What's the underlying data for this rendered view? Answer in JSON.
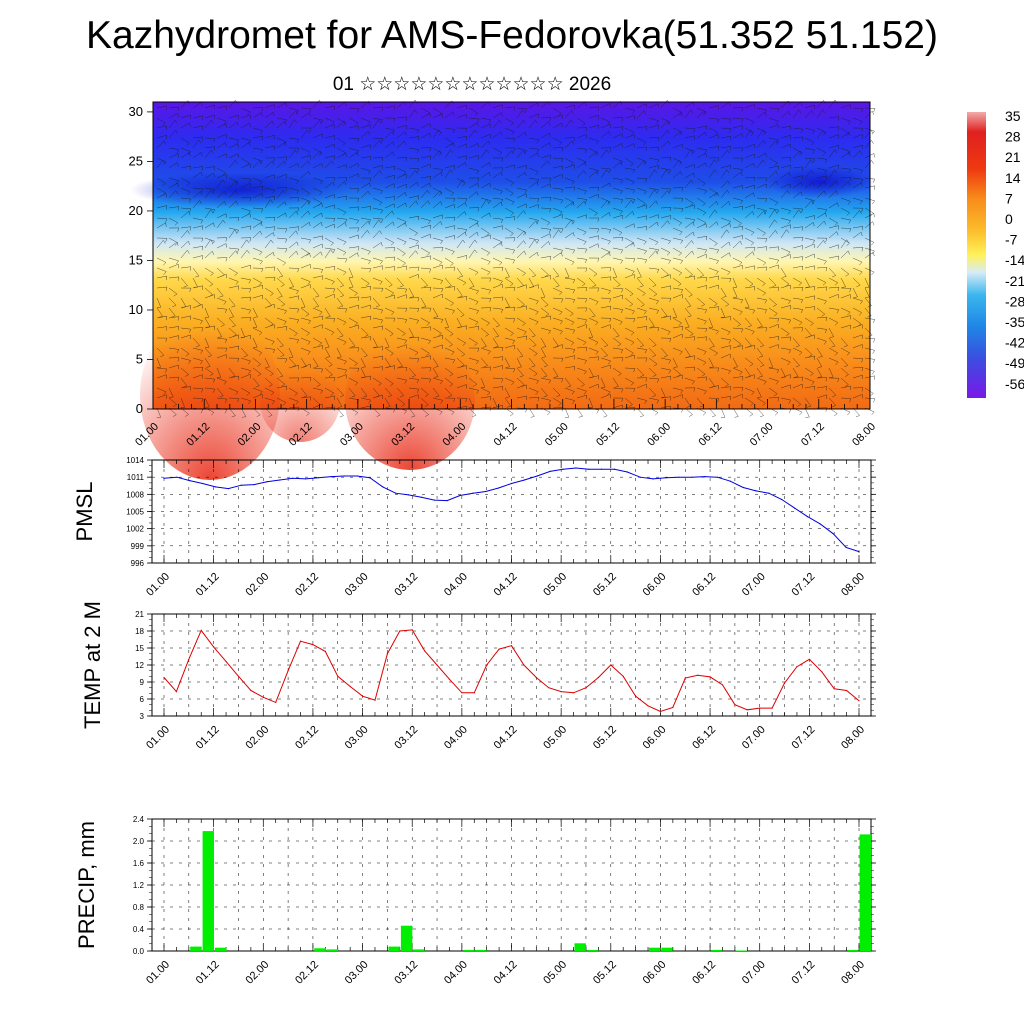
{
  "title": "Kazhydromet for AMS-Fedorovka(51.352 51.152)",
  "subtitle": "01 ☆☆☆☆☆☆☆☆☆☆☆☆ 2026",
  "time_labels": [
    "01.00",
    "01.12",
    "02.00",
    "02.12",
    "03.00",
    "03.12",
    "04.00",
    "04.12",
    "05.00",
    "05.12",
    "06.00",
    "06.12",
    "07.00",
    "07.12",
    "08.00"
  ],
  "colors": {
    "pmsl": "#0000dd",
    "temp": "#dd0000",
    "precip": "#00ee00"
  },
  "chart_data": [
    {
      "type": "heatmap",
      "name": "cross-section",
      "title": "",
      "ylim": [
        0,
        31
      ],
      "yticks": [
        "0",
        "5",
        "10",
        "15",
        "20",
        "25",
        "30"
      ],
      "colorbar_labels": [
        "35",
        "28",
        "21",
        "14",
        "7",
        "0",
        "-7",
        "-14",
        "-21",
        "-28",
        "-35",
        "-42",
        "-49",
        "-56"
      ]
    },
    {
      "type": "line",
      "name": "pmsl",
      "ylabel": "PMSL",
      "ylim": [
        996,
        1014
      ],
      "yticks": [
        "996",
        "999",
        "1002",
        "1005",
        "1008",
        "1011",
        "1014"
      ],
      "values": [
        1010.8,
        1011.0,
        1010.4,
        1009.9,
        1009.3,
        1009.0,
        1009.6,
        1009.7,
        1010.2,
        1010.5,
        1010.8,
        1010.7,
        1010.9,
        1011.1,
        1011.2,
        1011.2,
        1010.9,
        1009.3,
        1008.2,
        1007.9,
        1007.5,
        1007.0,
        1006.9,
        1007.8,
        1008.2,
        1008.5,
        1009.1,
        1009.9,
        1010.5,
        1011.2,
        1012.0,
        1012.4,
        1012.6,
        1012.4,
        1012.4,
        1012.4,
        1011.9,
        1011.0,
        1010.7,
        1010.9,
        1011.0,
        1011.0,
        1011.1,
        1011.0,
        1010.3,
        1009.2,
        1008.6,
        1008.2,
        1007.1,
        1005.6,
        1004.1,
        1002.8,
        1001.1,
        998.7,
        998.0
      ]
    },
    {
      "type": "line",
      "name": "temp",
      "ylabel": "TEMP at 2 M",
      "ylim": [
        3,
        21
      ],
      "yticks": [
        "3",
        "6",
        "9",
        "12",
        "15",
        "18",
        "21"
      ],
      "values": [
        9.8,
        7.3,
        13.0,
        18.1,
        15.2,
        12.6,
        10.0,
        7.5,
        6.3,
        5.4,
        11.0,
        16.2,
        15.6,
        14.4,
        10.0,
        8.2,
        6.5,
        5.8,
        14.0,
        18.0,
        18.2,
        14.5,
        12.0,
        9.5,
        7.1,
        7.1,
        12.0,
        14.8,
        15.4,
        12.0,
        9.8,
        8.0,
        7.3,
        7.1,
        8.0,
        9.8,
        12.0,
        10.0,
        6.5,
        4.8,
        3.8,
        4.5,
        9.7,
        10.2,
        9.9,
        8.5,
        5.0,
        4.1,
        4.4,
        4.4,
        8.8,
        11.7,
        13.0,
        10.8,
        7.8,
        7.5,
        5.7
      ]
    },
    {
      "type": "bar",
      "name": "precip",
      "ylabel": "PRECIP, mm",
      "ylim": [
        0,
        2.4
      ],
      "yticks": [
        "0.0",
        "0.4",
        "0.8",
        "1.2",
        "1.6",
        "2.0",
        "2.4"
      ],
      "values": [
        0,
        0,
        0,
        0.08,
        2.18,
        0.06,
        0,
        0,
        0,
        0,
        0,
        0,
        0,
        0.05,
        0.03,
        0,
        0,
        0,
        0,
        0.08,
        0.46,
        0.03,
        0,
        0,
        0,
        0.02,
        0.02,
        0,
        0,
        0,
        0,
        0,
        0,
        0,
        0.14,
        0.02,
        0,
        0,
        0,
        0,
        0.06,
        0.06,
        0,
        0,
        0,
        0.02,
        0,
        0.01,
        0,
        0,
        0,
        0,
        0,
        0,
        0,
        0,
        0.02,
        2.12
      ]
    }
  ]
}
